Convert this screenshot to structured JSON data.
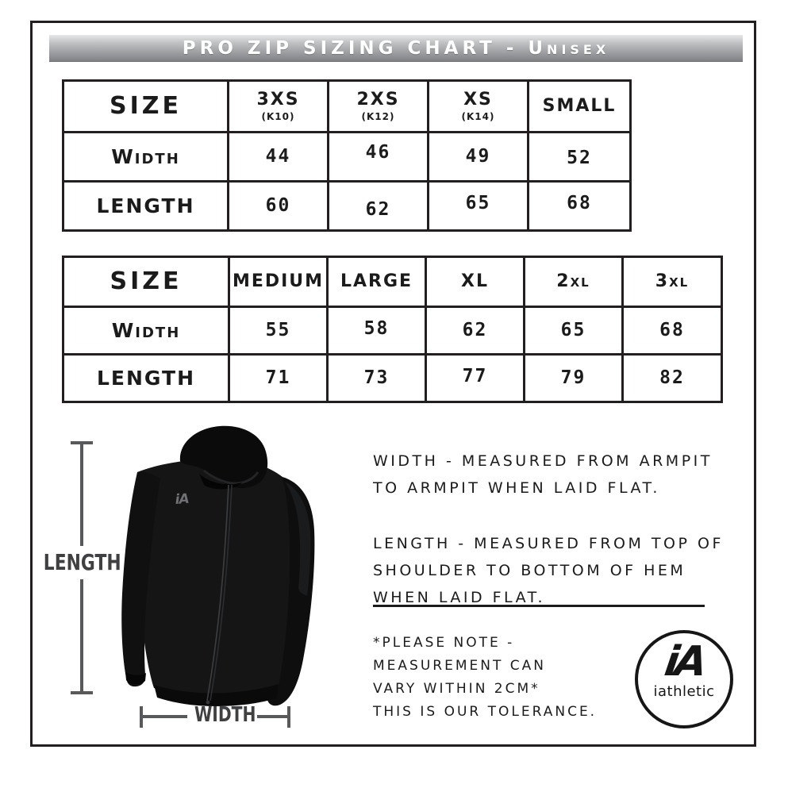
{
  "title_bar": {
    "text": "PRO ZIP SIZING CHART - Unisex",
    "text_color": "#ffffff",
    "bg_top": "#e7e8e9",
    "bg_bottom": "#7f8184"
  },
  "tables": [
    {
      "name": "sizes-3xs-to-small",
      "header": [
        {
          "label": "SIZE",
          "sub": ""
        },
        {
          "label": "3XS",
          "sub": "(K10)"
        },
        {
          "label": "2XS",
          "sub": "(K12)"
        },
        {
          "label": "XS",
          "sub": "(K14)"
        },
        {
          "label": "SMALL",
          "sub": ""
        }
      ],
      "rows": [
        {
          "label": "Width",
          "values": [
            "44",
            "46",
            "49",
            "52"
          ]
        },
        {
          "label": "LENGTH",
          "values": [
            "60",
            "62",
            "65",
            "68"
          ]
        }
      ]
    },
    {
      "name": "sizes-medium-to-3xl",
      "header": [
        {
          "label": "SIZE",
          "sub": ""
        },
        {
          "label": "MEDIUM",
          "sub": ""
        },
        {
          "label": "LARGE",
          "sub": ""
        },
        {
          "label": "XL",
          "sub": ""
        },
        {
          "label": "2xl",
          "sub": ""
        },
        {
          "label": "3xl",
          "sub": ""
        }
      ],
      "rows": [
        {
          "label": "Width",
          "values": [
            "55",
            "58",
            "62",
            "65",
            "68"
          ]
        },
        {
          "label": "LENGTH",
          "values": [
            "71",
            "73",
            "77",
            "79",
            "82"
          ]
        }
      ]
    }
  ],
  "chart_data": [
    {
      "type": "table",
      "title": "PRO ZIP SIZING CHART - Unisex",
      "columns": [
        "SIZE",
        "3XS (K10)",
        "2XS (K12)",
        "XS (K14)",
        "SMALL"
      ],
      "rows": [
        [
          "WIDTH",
          44,
          46,
          49,
          52
        ],
        [
          "LENGTH",
          60,
          62,
          65,
          68
        ]
      ]
    },
    {
      "type": "table",
      "columns": [
        "SIZE",
        "MEDIUM",
        "LARGE",
        "XL",
        "2XL",
        "3XL"
      ],
      "rows": [
        [
          "WIDTH",
          55,
          58,
          62,
          65,
          68
        ],
        [
          "LENGTH",
          71,
          73,
          77,
          79,
          82
        ]
      ]
    }
  ],
  "figure": {
    "garment": "black zip-up hoodie",
    "chest_logo": "iA",
    "length_label": "LENGTH",
    "width_label": "WIDTH",
    "line_color": "#58595b",
    "label_color": "#3f4042"
  },
  "descriptions": {
    "width_lines": [
      "WIDTH - MEASURED FROM ARMPIT",
      "TO ARMPIT WHEN LAID FLAT."
    ],
    "length_lines": [
      "LENGTH - MEASURED FROM TOP OF",
      "SHOULDER TO BOTTOM OF HEM",
      "WHEN LAID FLAT."
    ]
  },
  "note": {
    "lines": [
      "*PLEASE NOTE -",
      "MEASUREMENT CAN",
      "VARY WITHIN 2CM*",
      "THIS IS OUR TOLERANCE."
    ]
  },
  "logo": {
    "mark": "iA",
    "wordmark": "iAthletic"
  }
}
